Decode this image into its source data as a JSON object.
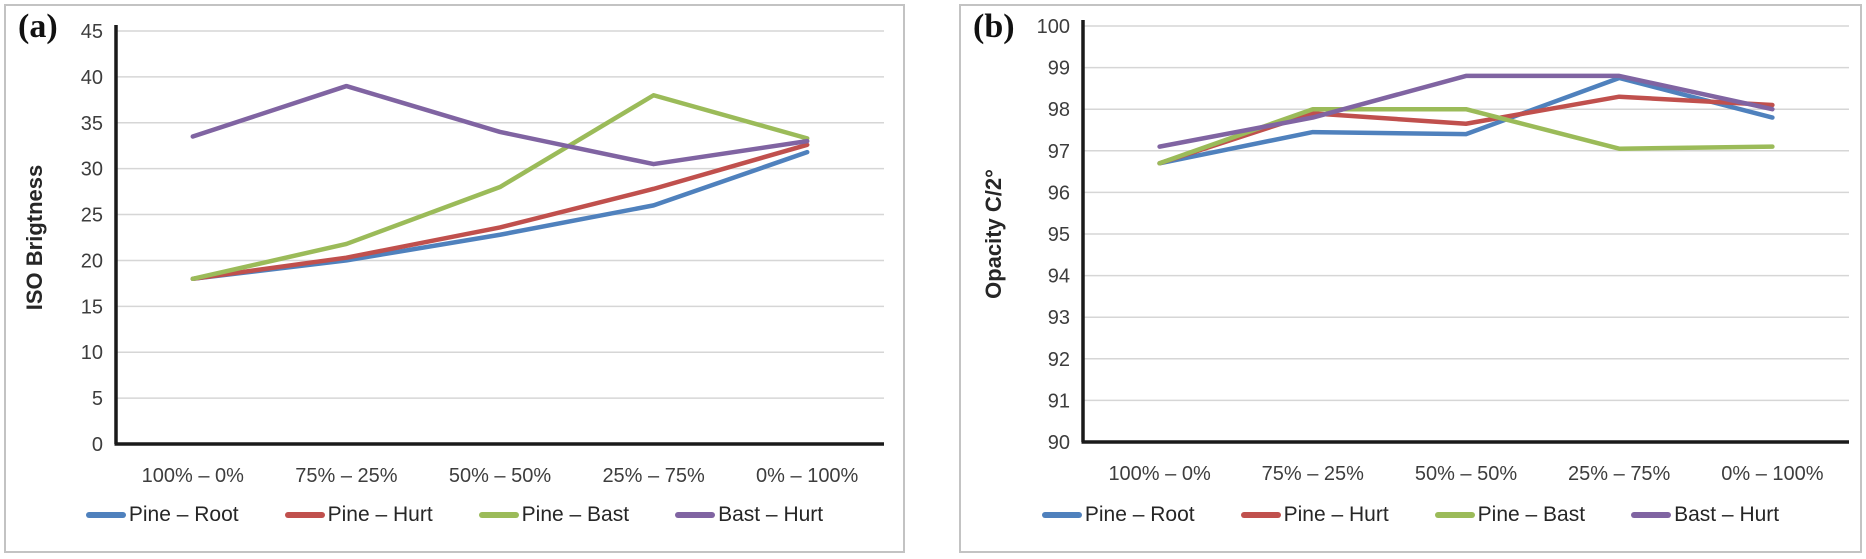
{
  "figure": {
    "panel_a_label": "(a)",
    "panel_b_label": "(b)"
  },
  "colors": {
    "blue": "#4F81BD",
    "red": "#C0504D",
    "green": "#9BBB59",
    "purple": "#8064A2",
    "gridline": "#d6d6d6",
    "axis": "#1a1a1a"
  },
  "chart_data": [
    {
      "type": "line",
      "panel": "(a)",
      "title": "",
      "xlabel": "",
      "ylabel": "ISO Brigtness",
      "ylim": [
        0,
        45
      ],
      "ytick_step": 5,
      "grid": "horizontal",
      "legend_position": "bottom",
      "categories": [
        "100% – 0%",
        "75% – 25%",
        "50% – 50%",
        "25% – 75%",
        "0% – 100%"
      ],
      "series": [
        {
          "name": "Pine – Root",
          "color": "#4F81BD",
          "values": [
            18,
            20,
            22.8,
            26,
            31.8
          ]
        },
        {
          "name": "Pine – Hurt",
          "color": "#C0504D",
          "values": [
            18,
            20.3,
            23.6,
            27.8,
            32.6
          ]
        },
        {
          "name": "Pine – Bast",
          "color": "#9BBB59",
          "values": [
            18,
            21.8,
            28,
            38,
            33.3
          ]
        },
        {
          "name": "Bast – Hurt",
          "color": "#8064A2",
          "values": [
            33.5,
            39,
            34,
            30.5,
            33
          ]
        }
      ]
    },
    {
      "type": "line",
      "panel": "(b)",
      "title": "",
      "xlabel": "",
      "ylabel": "Opacity C/2°",
      "ylim": [
        90,
        100
      ],
      "ytick_step": 1,
      "grid": "horizontal",
      "legend_position": "bottom",
      "categories": [
        "100% – 0%",
        "75% – 25%",
        "50% – 50%",
        "25% – 75%",
        "0% – 100%"
      ],
      "series": [
        {
          "name": "Pine – Root",
          "color": "#4F81BD",
          "values": [
            96.7,
            97.45,
            97.4,
            98.75,
            97.8
          ]
        },
        {
          "name": "Pine – Hurt",
          "color": "#C0504D",
          "values": [
            96.7,
            97.9,
            97.65,
            98.3,
            98.1
          ]
        },
        {
          "name": "Pine – Bast",
          "color": "#9BBB59",
          "values": [
            96.7,
            98.0,
            98.0,
            97.05,
            97.1
          ]
        },
        {
          "name": "Bast – Hurt",
          "color": "#8064A2",
          "values": [
            97.1,
            97.8,
            98.8,
            98.8,
            98.0
          ]
        }
      ]
    }
  ]
}
